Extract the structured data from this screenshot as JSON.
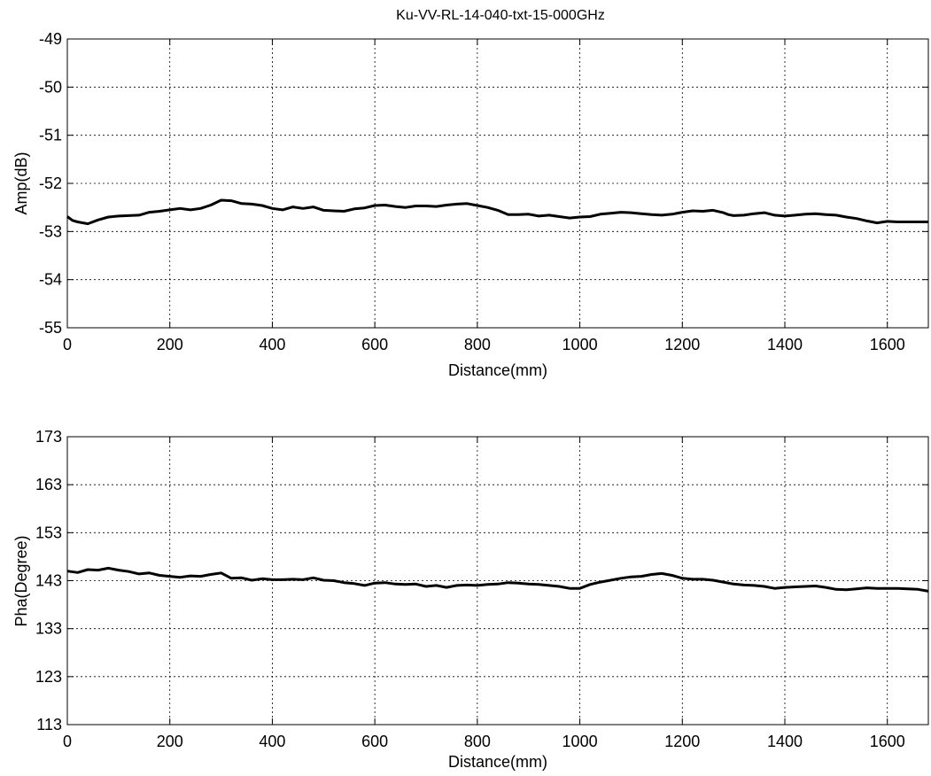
{
  "chart_data": [
    {
      "type": "line",
      "title": "Ku-VV-RL-14-040-txt-15-000GHz",
      "xlabel": "Distance(mm)",
      "ylabel": "Amp(dB)",
      "xlim": [
        0,
        1680
      ],
      "ylim": [
        -55,
        -49
      ],
      "xticks": [
        0,
        200,
        400,
        600,
        800,
        1000,
        1200,
        1400,
        1600
      ],
      "yticks": [
        -55,
        -54,
        -53,
        -52,
        -51,
        -50,
        -49
      ],
      "grid": true,
      "series": [
        {
          "color": "#000000",
          "x": [
            0,
            10,
            20,
            40,
            60,
            80,
            100,
            120,
            140,
            160,
            180,
            200,
            220,
            240,
            260,
            280,
            300,
            320,
            340,
            360,
            380,
            400,
            420,
            440,
            460,
            480,
            500,
            520,
            540,
            560,
            580,
            600,
            620,
            640,
            660,
            680,
            700,
            720,
            740,
            760,
            780,
            800,
            820,
            840,
            860,
            880,
            900,
            920,
            940,
            960,
            980,
            1000,
            1020,
            1040,
            1060,
            1080,
            1100,
            1120,
            1140,
            1160,
            1180,
            1200,
            1220,
            1240,
            1260,
            1280,
            1290,
            1300,
            1320,
            1340,
            1360,
            1380,
            1400,
            1420,
            1440,
            1460,
            1480,
            1500,
            1520,
            1540,
            1560,
            1580,
            1600,
            1620,
            1640,
            1660,
            1680
          ],
          "y": [
            -52.69,
            -52.77,
            -52.8,
            -52.84,
            -52.76,
            -52.7,
            -52.68,
            -52.67,
            -52.66,
            -52.6,
            -52.58,
            -52.55,
            -52.52,
            -52.55,
            -52.52,
            -52.45,
            -52.35,
            -52.36,
            -52.42,
            -52.43,
            -52.46,
            -52.52,
            -52.55,
            -52.49,
            -52.52,
            -52.49,
            -52.56,
            -52.57,
            -52.58,
            -52.53,
            -52.51,
            -52.46,
            -52.45,
            -52.48,
            -52.5,
            -52.47,
            -52.47,
            -52.48,
            -52.45,
            -52.43,
            -52.42,
            -52.46,
            -52.5,
            -52.56,
            -52.65,
            -52.65,
            -52.64,
            -52.68,
            -52.66,
            -52.69,
            -52.72,
            -52.7,
            -52.69,
            -52.64,
            -52.62,
            -52.6,
            -52.61,
            -52.63,
            -52.65,
            -52.66,
            -52.64,
            -52.6,
            -52.57,
            -52.58,
            -52.56,
            -52.61,
            -52.65,
            -52.67,
            -52.66,
            -52.63,
            -52.61,
            -52.66,
            -52.68,
            -52.66,
            -52.64,
            -52.63,
            -52.65,
            -52.66,
            -52.7,
            -52.73,
            -52.78,
            -52.82,
            -52.79,
            -52.8,
            -52.8,
            -52.8,
            -52.8
          ]
        }
      ]
    },
    {
      "type": "line",
      "title": "",
      "xlabel": "Distance(mm)",
      "ylabel": "Pha(Degree)",
      "xlim": [
        0,
        1680
      ],
      "ylim": [
        113,
        173
      ],
      "xticks": [
        0,
        200,
        400,
        600,
        800,
        1000,
        1200,
        1400,
        1600
      ],
      "yticks": [
        113,
        123,
        133,
        143,
        153,
        163,
        173
      ],
      "grid": true,
      "series": [
        {
          "color": "#000000",
          "x": [
            0,
            20,
            40,
            60,
            80,
            100,
            120,
            140,
            160,
            180,
            200,
            220,
            240,
            260,
            280,
            300,
            320,
            340,
            360,
            380,
            400,
            420,
            440,
            460,
            480,
            500,
            520,
            540,
            560,
            580,
            600,
            620,
            640,
            660,
            680,
            700,
            720,
            740,
            760,
            780,
            800,
            820,
            840,
            860,
            880,
            900,
            920,
            940,
            960,
            980,
            1000,
            1020,
            1040,
            1060,
            1080,
            1100,
            1120,
            1140,
            1160,
            1180,
            1200,
            1220,
            1240,
            1260,
            1280,
            1300,
            1320,
            1340,
            1360,
            1380,
            1400,
            1420,
            1440,
            1460,
            1480,
            1500,
            1520,
            1540,
            1560,
            1580,
            1600,
            1620,
            1640,
            1660,
            1680
          ],
          "y": [
            145.0,
            144.7,
            145.3,
            145.2,
            145.6,
            145.2,
            144.9,
            144.4,
            144.6,
            144.1,
            143.9,
            143.7,
            144.0,
            143.9,
            144.3,
            144.6,
            143.5,
            143.6,
            143.1,
            143.4,
            143.2,
            143.2,
            143.3,
            143.2,
            143.6,
            143.1,
            143.0,
            142.6,
            142.4,
            142.0,
            142.5,
            142.6,
            142.3,
            142.2,
            142.3,
            141.8,
            142.0,
            141.6,
            142.0,
            142.1,
            142.0,
            142.2,
            142.3,
            142.6,
            142.5,
            142.3,
            142.2,
            142.0,
            141.8,
            141.4,
            141.4,
            142.2,
            142.7,
            143.1,
            143.5,
            143.8,
            143.9,
            144.3,
            144.5,
            144.1,
            143.5,
            143.3,
            143.3,
            143.1,
            142.7,
            142.3,
            142.1,
            142.0,
            141.8,
            141.4,
            141.6,
            141.7,
            141.8,
            141.9,
            141.6,
            141.2,
            141.1,
            141.3,
            141.5,
            141.4,
            141.4,
            141.4,
            141.3,
            141.2,
            140.8
          ]
        }
      ]
    }
  ]
}
